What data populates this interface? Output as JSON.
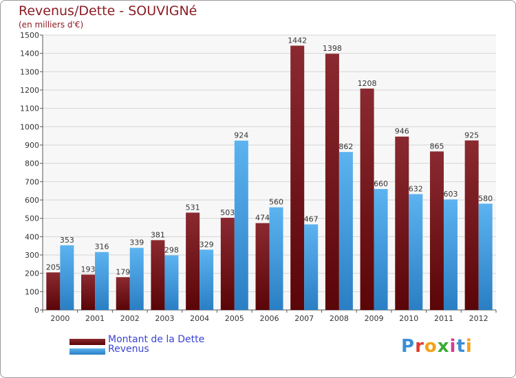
{
  "chart_data": {
    "type": "bar",
    "title": "Revenus/Dette - SOUVIGNé",
    "subtitle": "(en milliers d'€)",
    "categories": [
      "2000",
      "2001",
      "2002",
      "2003",
      "2004",
      "2005",
      "2006",
      "2007",
      "2008",
      "2009",
      "2010",
      "2011",
      "2012"
    ],
    "series": [
      {
        "name": "Montant de la Dette",
        "values": [
          205,
          193,
          179,
          381,
          531,
          503,
          474,
          1442,
          1398,
          1208,
          946,
          865,
          925
        ],
        "color": "#7a1418"
      },
      {
        "name": "Revenus",
        "values": [
          353,
          316,
          339,
          298,
          329,
          924,
          560,
          467,
          862,
          660,
          632,
          603,
          580
        ],
        "color": "#3f9fe6"
      }
    ],
    "ylim": [
      0,
      1500
    ],
    "yticks": [
      0,
      100,
      200,
      300,
      400,
      500,
      600,
      700,
      800,
      900,
      1000,
      1100,
      1200,
      1300,
      1400,
      1500
    ],
    "grid": true,
    "legend": "bottom-left"
  },
  "logo": {
    "text": "Proxiti",
    "colors": [
      "#3a8fd6",
      "#e03a2f",
      "#f2a318",
      "#3aaa35",
      "#d63a8e",
      "#3a8fd6",
      "#f2a318"
    ]
  }
}
